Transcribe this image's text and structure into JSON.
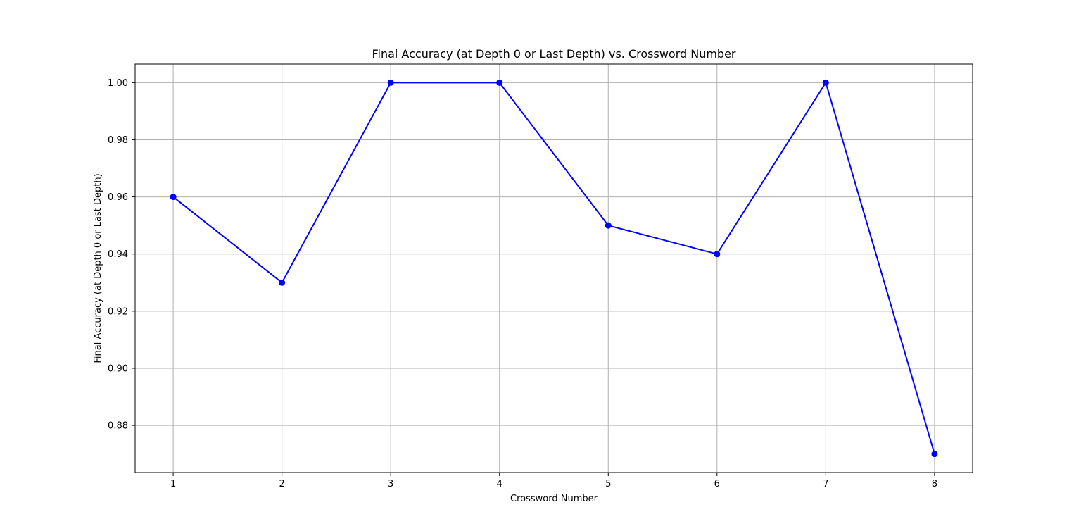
{
  "chart_data": {
    "type": "line",
    "title": "Final Accuracy (at Depth 0 or Last Depth) vs. Crossword Number",
    "xlabel": "Crossword Number",
    "ylabel": "Final Accuracy (at Depth 0 or Last Depth)",
    "x": [
      1,
      2,
      3,
      4,
      5,
      6,
      7,
      8
    ],
    "series": [
      {
        "values": [
          0.96,
          0.93,
          1.0,
          1.0,
          0.95,
          0.94,
          1.0,
          0.87
        ]
      }
    ],
    "xticks": [
      "1",
      "2",
      "3",
      "4",
      "5",
      "6",
      "7",
      "8"
    ],
    "yticks": [
      "0.88",
      "0.90",
      "0.92",
      "0.94",
      "0.96",
      "0.98",
      "1.00"
    ],
    "xlim": [
      0.65,
      8.35
    ],
    "ylim": [
      0.8635,
      1.0065
    ],
    "grid": true,
    "legend": "none",
    "line_color": "#0000ff",
    "marker_color": "#0000ff"
  }
}
